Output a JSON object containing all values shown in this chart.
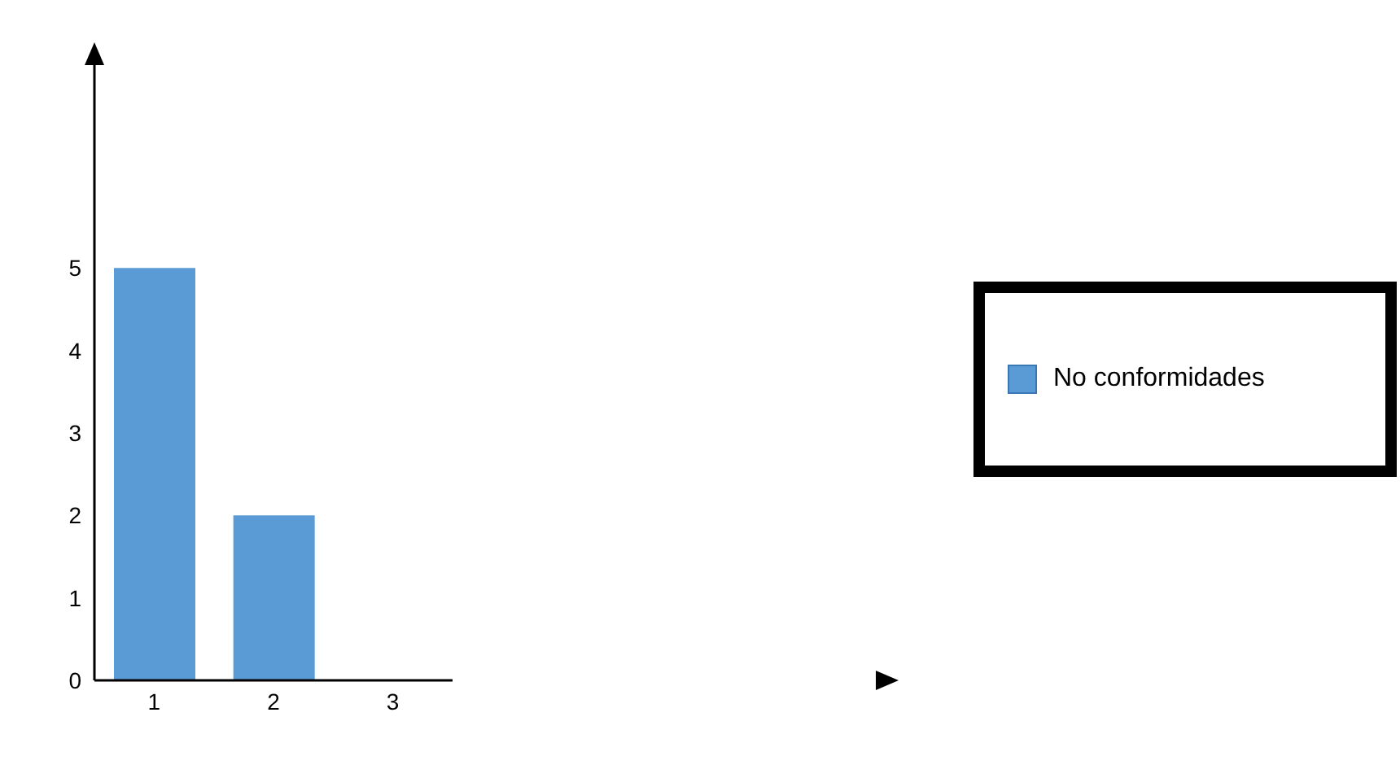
{
  "chart_data": {
    "type": "bar",
    "categories": [
      "1",
      "2",
      "3"
    ],
    "series": [
      {
        "name": "No conformidades",
        "color": "#5b9bd5",
        "values": [
          5,
          2,
          0
        ]
      }
    ],
    "ylim": [
      0,
      7.5
    ],
    "yticks": [
      0,
      1,
      2,
      3,
      4,
      5
    ],
    "grid": false,
    "legend": "right"
  }
}
